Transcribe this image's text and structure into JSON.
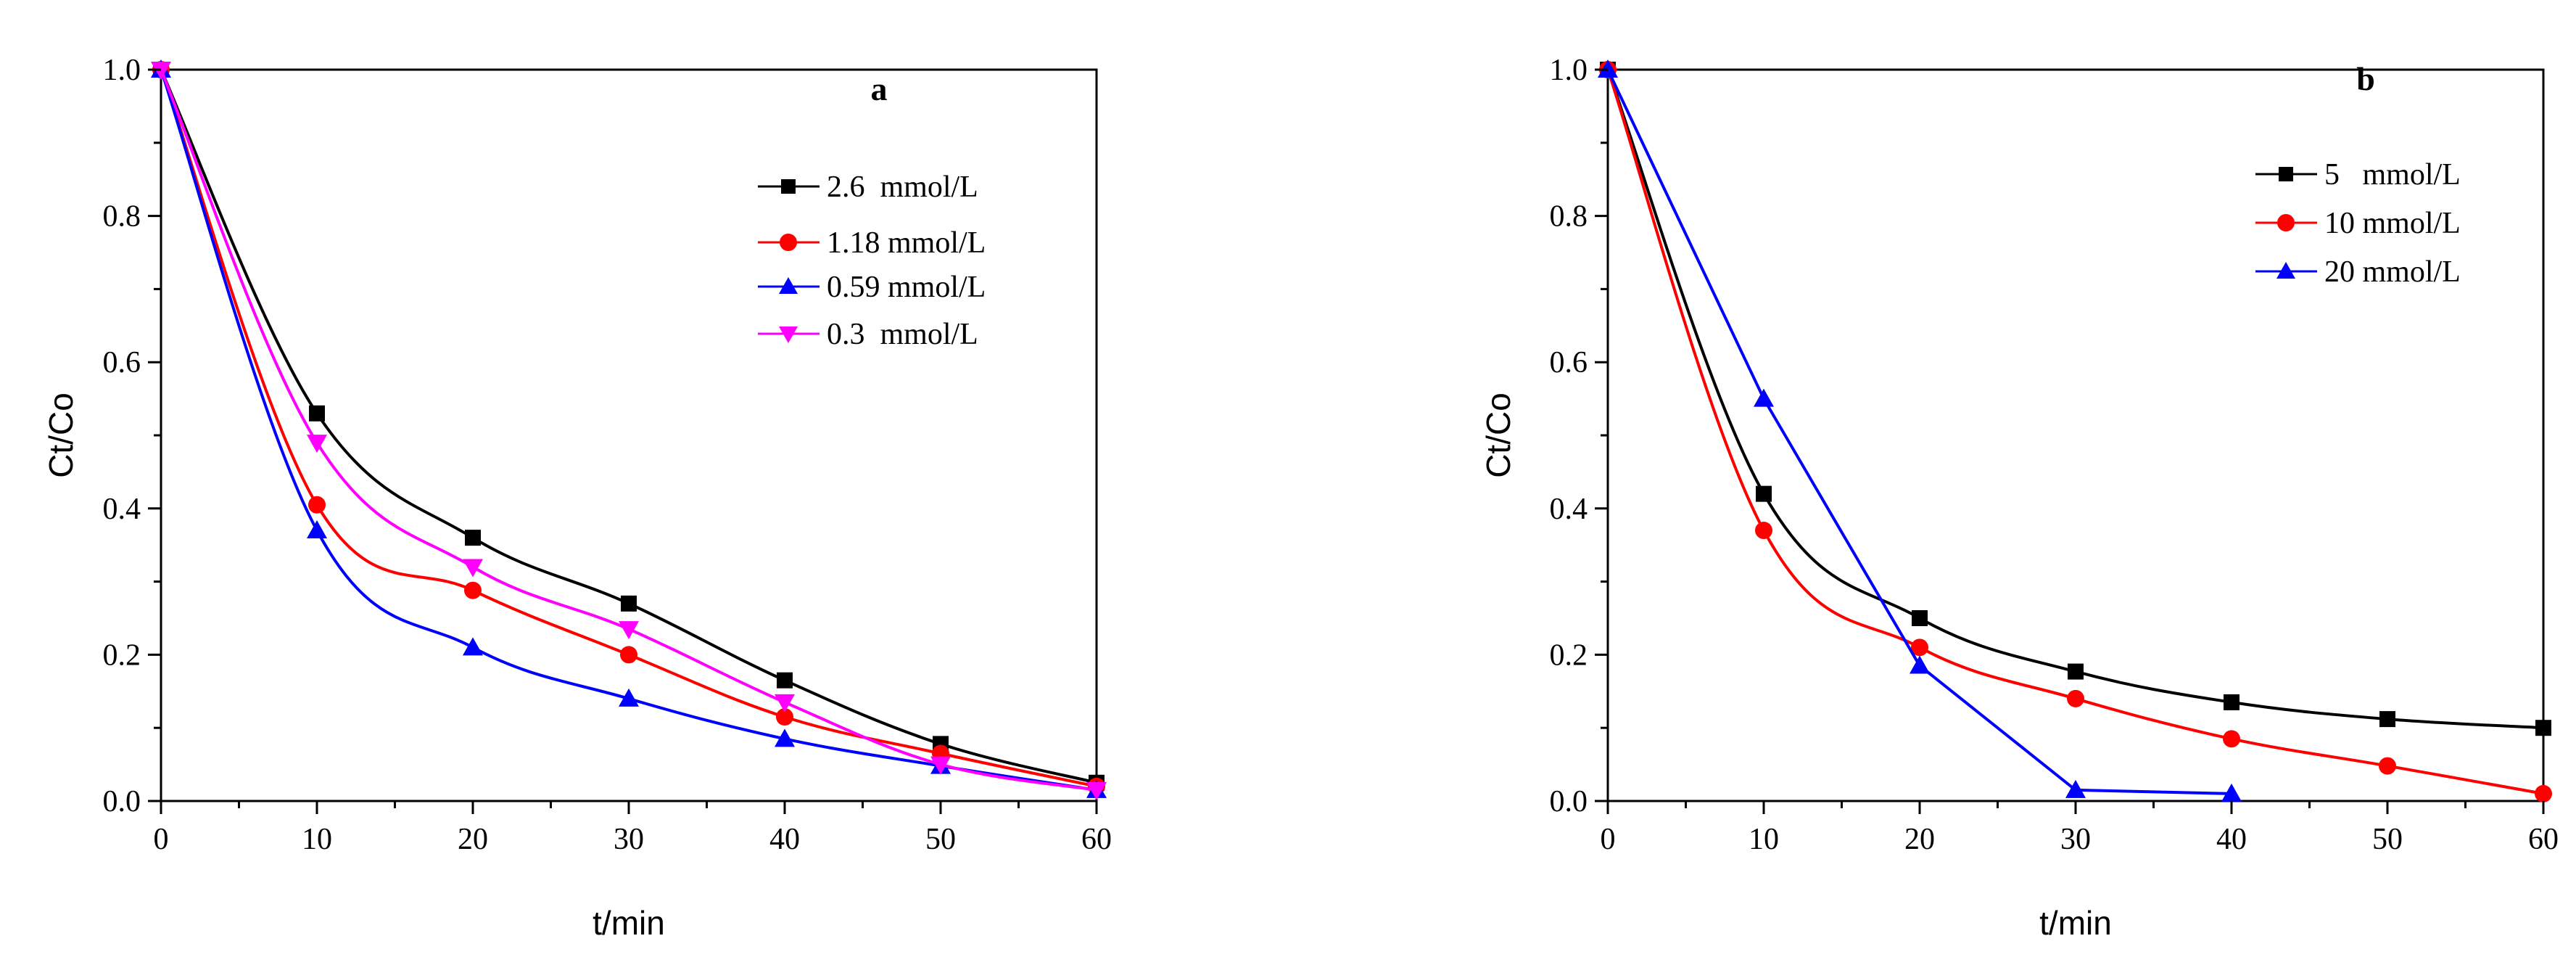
{
  "chart_data": [
    {
      "type": "line",
      "panel_label": "a",
      "xlabel": "t/min",
      "ylabel": "Ct/Co",
      "xlim": [
        0,
        60
      ],
      "ylim": [
        0,
        1.0
      ],
      "xticks": [
        "0",
        "10",
        "20",
        "30",
        "40",
        "50",
        "60"
      ],
      "yticks": [
        "0.0",
        "0.2",
        "0.4",
        "0.6",
        "0.8",
        "1.0"
      ],
      "legend_position": "top-right",
      "x": [
        0,
        10,
        20,
        30,
        40,
        50,
        60
      ],
      "series": [
        {
          "name": "2.6  mmol/L",
          "color": "#000000",
          "marker": "square",
          "values": [
            1.0,
            0.53,
            0.36,
            0.27,
            0.165,
            0.078,
            0.025
          ]
        },
        {
          "name": "1.18 mmol/L",
          "color": "#ff0000",
          "marker": "circle",
          "values": [
            1.0,
            0.405,
            0.288,
            0.2,
            0.115,
            0.065,
            0.02
          ]
        },
        {
          "name": "0.59 mmol/L",
          "color": "#0000ff",
          "marker": "triangle-up",
          "values": [
            1.0,
            0.37,
            0.21,
            0.14,
            0.085,
            0.048,
            0.015
          ]
        },
        {
          "name": "0.3  mmol/L",
          "color": "#ff00ff",
          "marker": "triangle-down",
          "values": [
            1.0,
            0.49,
            0.32,
            0.235,
            0.135,
            0.05,
            0.015
          ]
        }
      ]
    },
    {
      "type": "line",
      "panel_label": "b",
      "xlabel": "t/min",
      "ylabel": "Ct/Co",
      "xlim": [
        0,
        60
      ],
      "ylim": [
        0,
        1.0
      ],
      "xticks": [
        "0",
        "10",
        "20",
        "30",
        "40",
        "50",
        "60"
      ],
      "yticks": [
        "0.0",
        "0.2",
        "0.4",
        "0.6",
        "0.8",
        "1.0"
      ],
      "legend_position": "top-right",
      "series": [
        {
          "name": "5   mmol/L",
          "color": "#000000",
          "marker": "square",
          "x": [
            0,
            10,
            20,
            30,
            40,
            50,
            60
          ],
          "values": [
            1.0,
            0.42,
            0.25,
            0.177,
            0.135,
            0.112,
            0.1
          ]
        },
        {
          "name": "10 mmol/L",
          "color": "#ff0000",
          "marker": "circle",
          "x": [
            0,
            10,
            20,
            30,
            40,
            50,
            60
          ],
          "values": [
            1.0,
            0.37,
            0.21,
            0.14,
            0.085,
            0.048,
            0.01
          ]
        },
        {
          "name": "20 mmol/L",
          "color": "#0000ff",
          "marker": "triangle-up",
          "x": [
            0,
            10,
            20,
            30,
            40
          ],
          "values": [
            1.0,
            0.55,
            0.185,
            0.015,
            0.01
          ]
        }
      ]
    }
  ]
}
